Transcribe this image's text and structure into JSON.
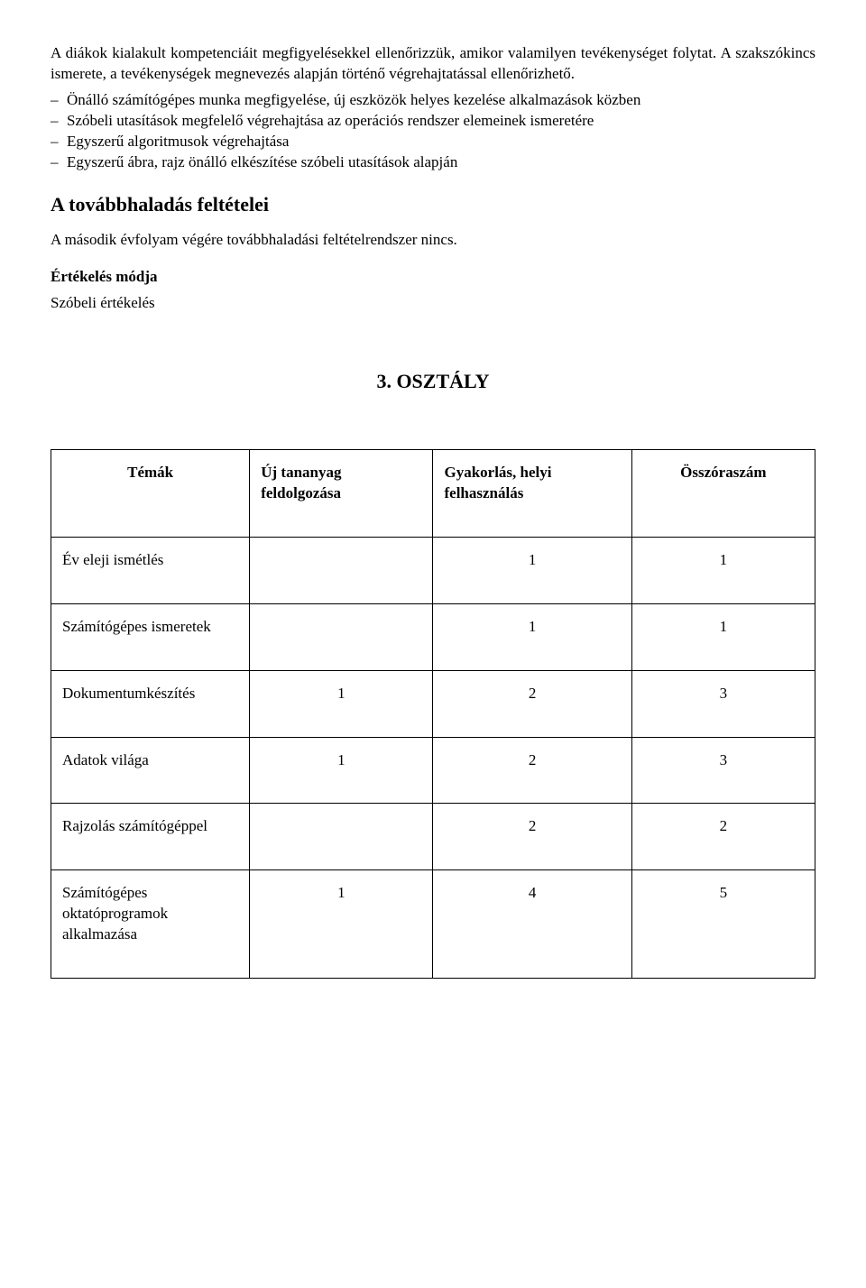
{
  "intro": {
    "p1": "A diákok kialakult kompetenciáit megfigyelésekkel ellenőrizzük, amikor valamilyen tevékenységet folytat. A szakszókincs ismerete, a tevékenységek megnevezés alapján történő végrehajtatással ellenőrizhető.",
    "bullets": [
      "Önálló számítógépes munka megfigyelése, új eszközök helyes kezelése alkalmazások közben",
      "Szóbeli utasítások megfelelő végrehajtása az operációs rendszer elemeinek ismeretére",
      "Egyszerű algoritmusok végrehajtása",
      "Egyszerű ábra, rajz önálló elkészítése szóbeli utasítások alapján"
    ]
  },
  "section_title": "A továbbhaladás feltételei",
  "section_body": "A második évfolyam végére továbbhaladási feltételrendszer nincs.",
  "eval_label": "Értékelés módja",
  "eval_value": "Szóbeli értékelés",
  "grade_title": "3. OSZTÁLY",
  "table": {
    "headers": {
      "c1": "Témák",
      "c2": "Új tananyag feldolgozása",
      "c3": "Gyakorlás, helyi felhasználás",
      "c4": "Összóraszám"
    },
    "rows": [
      {
        "label": "Év eleji ismétlés",
        "c2": "",
        "c3": "1",
        "c4": "1"
      },
      {
        "label": "Számítógépes ismeretek",
        "c2": "",
        "c3": "1",
        "c4": "1"
      },
      {
        "label": "Dokumentumkészítés",
        "c2": "1",
        "c3": "2",
        "c4": "3"
      },
      {
        "label": "Adatok világa",
        "c2": "1",
        "c3": "2",
        "c4": "3"
      },
      {
        "label": "Rajzolás számítógéppel",
        "c2": "",
        "c3": "2",
        "c4": "2"
      },
      {
        "label": "Számítógépes oktatóprogramok alkalmazása",
        "c2": "1",
        "c3": "4",
        "c4": "5"
      }
    ]
  }
}
